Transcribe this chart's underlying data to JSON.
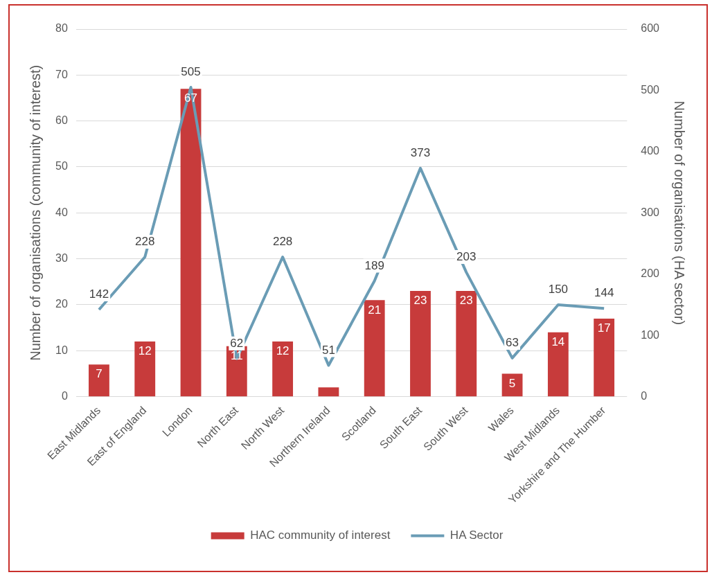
{
  "chart_data": {
    "type": "bar",
    "categories": [
      "East Midlands",
      "East of England",
      "London",
      "North East",
      "North West",
      "Northern Ireland",
      "Scotland",
      "South East",
      "South West",
      "Wales",
      "West Midlands",
      "Yorkshire and The Humber"
    ],
    "series": [
      {
        "name": "HAC community of interest",
        "color": "#c73b3b",
        "values": [
          7,
          12,
          67,
          11,
          12,
          2,
          21,
          23,
          23,
          5,
          14,
          17
        ],
        "value_labels": [
          "7",
          "12",
          "67",
          "11",
          "12",
          null,
          "21",
          "23",
          "23",
          "5",
          "14",
          "17"
        ]
      },
      {
        "name": "HA Sector",
        "type": "line",
        "axis": "y2",
        "color": "#6a9cb5",
        "values": [
          142,
          228,
          505,
          62,
          228,
          51,
          189,
          373,
          203,
          63,
          150,
          144
        ],
        "value_labels": [
          "142",
          "228",
          "505",
          "62",
          "228",
          "51",
          "189",
          "373",
          "203",
          "63",
          "150",
          "144"
        ]
      }
    ],
    "ylabel": "Number of organisations (community of interest)",
    "y2label": "Number of organisations (HA sector)",
    "ylim": [
      0,
      80
    ],
    "yticks": [
      0,
      10,
      20,
      30,
      40,
      50,
      60,
      70,
      80
    ],
    "y2lim": [
      0,
      600
    ],
    "y2ticks": [
      0,
      100,
      200,
      300,
      400,
      500,
      600
    ],
    "grid": "y",
    "legend": "bottom",
    "marker": "none",
    "line_style": "solid"
  }
}
